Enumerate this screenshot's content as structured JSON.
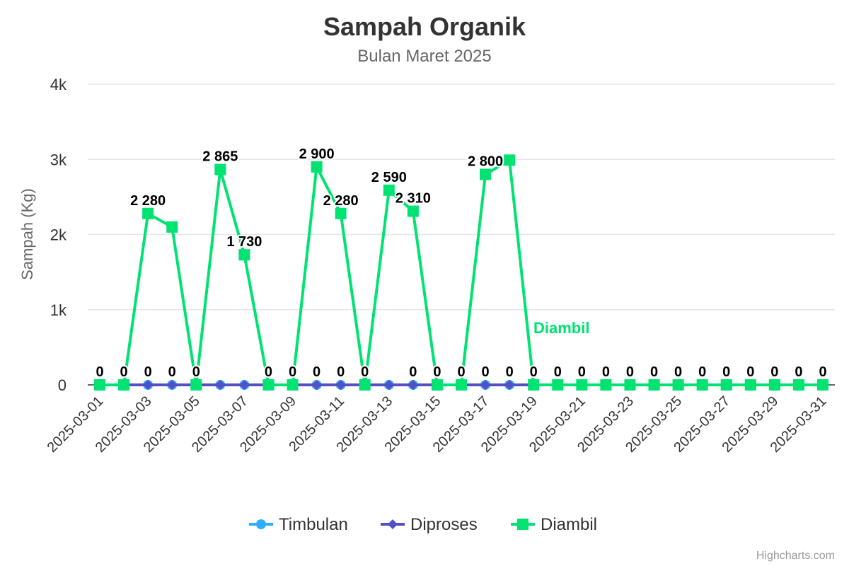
{
  "chart_data": {
    "type": "line",
    "title": "Sampah Organik",
    "subtitle": "Bulan Maret 2025",
    "ylabel": "Sampah (Kg)",
    "ylim": [
      0,
      4000
    ],
    "yticks": [
      0,
      1000,
      2000,
      3000,
      4000
    ],
    "ytick_labels": [
      "0",
      "1k",
      "2k",
      "3k",
      "4k"
    ],
    "grid": true,
    "legend_position": "bottom-center",
    "x": [
      "2025-03-01",
      "2025-03-02",
      "2025-03-03",
      "2025-03-04",
      "2025-03-05",
      "2025-03-06",
      "2025-03-07",
      "2025-03-08",
      "2025-03-09",
      "2025-03-10",
      "2025-03-11",
      "2025-03-12",
      "2025-03-13",
      "2025-03-14",
      "2025-03-15",
      "2025-03-16",
      "2025-03-17",
      "2025-03-18",
      "2025-03-19",
      "2025-03-20",
      "2025-03-21",
      "2025-03-22",
      "2025-03-23",
      "2025-03-24",
      "2025-03-25",
      "2025-03-26",
      "2025-03-27",
      "2025-03-28",
      "2025-03-29",
      "2025-03-30",
      "2025-03-31"
    ],
    "xtick_labels": [
      "2025-03-01",
      "2025-03-03",
      "2025-03-05",
      "2025-03-07",
      "2025-03-09",
      "2025-03-11",
      "2025-03-13",
      "2025-03-15",
      "2025-03-17",
      "2025-03-19",
      "2025-03-21",
      "2025-03-23",
      "2025-03-25",
      "2025-03-27",
      "2025-03-29",
      "2025-03-31"
    ],
    "series": [
      {
        "name": "Timbulan",
        "color": "#2caffe",
        "marker": "circle",
        "values": [
          0,
          0,
          0,
          0,
          0,
          0,
          0,
          0,
          0,
          0,
          0,
          0,
          0,
          0,
          0,
          0,
          0,
          0,
          0,
          0,
          0,
          0,
          0,
          0,
          0,
          0,
          0,
          0,
          0,
          0,
          0
        ]
      },
      {
        "name": "Diproses",
        "color": "#544fc5",
        "marker": "diamond",
        "values": [
          0,
          0,
          0,
          0,
          0,
          0,
          0,
          0,
          0,
          0,
          0,
          0,
          0,
          0,
          0,
          0,
          0,
          0,
          0,
          0,
          0,
          0,
          0,
          0,
          0,
          0,
          0,
          0,
          0,
          0,
          0
        ]
      },
      {
        "name": "Diambil",
        "color": "#00e272",
        "marker": "square",
        "values": [
          0,
          0,
          2280,
          2100,
          0,
          2865,
          1730,
          0,
          0,
          2900,
          2280,
          0,
          2590,
          2310,
          0,
          0,
          2800,
          2990,
          0,
          0,
          0,
          0,
          0,
          0,
          0,
          0,
          0,
          0,
          0,
          0,
          0
        ],
        "data_labels": [
          "0",
          "0",
          "2 280",
          "",
          "0",
          "2 865",
          "1 730",
          "0",
          "0",
          "2 900",
          "2 280",
          "0",
          "2 590",
          "2 310",
          "0",
          "0",
          "2 800",
          "",
          "0",
          "0",
          "0",
          "0",
          "0",
          "0",
          "0",
          "0",
          "0",
          "0",
          "0",
          "0",
          "0"
        ],
        "bottom_labels": [
          "",
          "",
          "0",
          "0",
          "",
          "",
          "",
          "",
          "",
          "0",
          "0",
          "",
          "",
          "0",
          "",
          "",
          "0",
          "0",
          "",
          "",
          "",
          "",
          "",
          "",
          "",
          "",
          "",
          "",
          "",
          "",
          ""
        ],
        "inline_label": "Diambil"
      }
    ]
  },
  "credits": "Highcharts.com"
}
